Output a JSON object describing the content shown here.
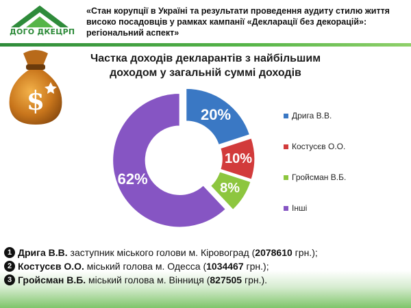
{
  "header": {
    "logo_text": "ДОГО ДКЕЦРП",
    "title": "«Стан корупції в Україні та результати проведення аудиту стилю життя високо посадовців у рамках кампанії «Декларації без декорацій»: регіональний аспект»"
  },
  "chart_data": {
    "type": "pie",
    "donut": true,
    "title": "Частка доходів декларантів з найбільшим доходом у загальній суммі доходів",
    "categories": [
      "Дрига В.В.",
      "Костусєв О.О.",
      "Гройсман В.Б.",
      "Інші"
    ],
    "values": [
      20,
      10,
      8,
      62
    ],
    "value_labels": [
      "20%",
      "10%",
      "8%",
      "62%"
    ],
    "colors": [
      "#3a78c4",
      "#d23b3b",
      "#8dc63f",
      "#8655c3"
    ],
    "legend_position": "right"
  },
  "notes": [
    {
      "number": "1",
      "name": "Дрига В.В.",
      "description": " заступник міського голови м. Кіровоград (",
      "amount": "2078610",
      "suffix": " грн.);"
    },
    {
      "number": "2",
      "name": "Костусєв О.О.",
      "description": " міський голова м. Одесса (",
      "amount": "1034467",
      "suffix": " грн.);"
    },
    {
      "number": "3",
      "name": "Гройсман В.Б.",
      "description": " міський голова м. Вінниця (",
      "amount": "827505",
      "suffix": " грн.)."
    }
  ]
}
